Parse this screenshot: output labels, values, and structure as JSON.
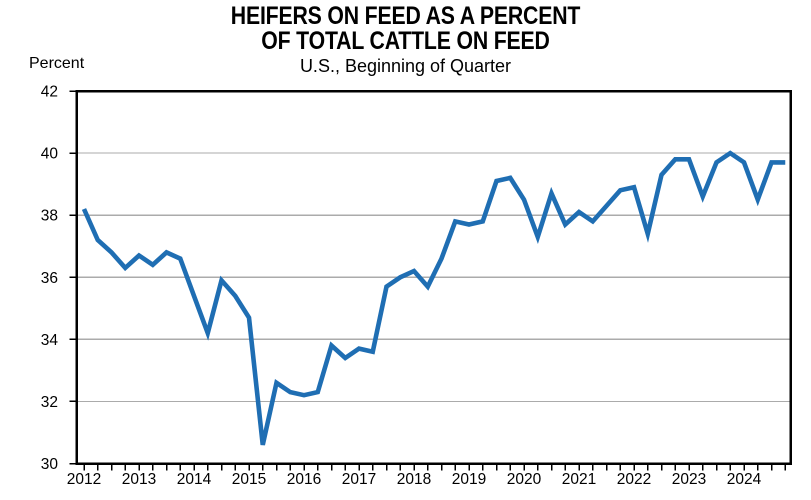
{
  "chart_data": {
    "type": "line",
    "title": "HEIFERS ON FEED AS A PERCENT",
    "title_line2": "OF TOTAL CATTLE ON FEED",
    "subtitle": "U.S., Beginning of Quarter",
    "ylabel": "Percent",
    "xlabel": "",
    "ylim": [
      30,
      42
    ],
    "yticks": [
      30,
      32,
      34,
      36,
      38,
      40,
      42
    ],
    "x_years": [
      2012,
      2013,
      2014,
      2015,
      2016,
      2017,
      2018,
      2019,
      2020,
      2021,
      2022,
      2023,
      2024
    ],
    "frequency": "quarterly",
    "start": "2012-Q1",
    "legend": "none",
    "grid": "horizontal",
    "series": [
      {
        "name": "Heifers on feed as percent of total cattle on feed",
        "values": [
          38.2,
          37.2,
          36.8,
          36.3,
          36.7,
          36.4,
          36.8,
          36.6,
          35.4,
          34.2,
          35.9,
          35.4,
          34.7,
          30.6,
          32.6,
          32.3,
          32.2,
          32.3,
          33.8,
          33.4,
          33.7,
          33.6,
          35.7,
          36.0,
          36.2,
          35.7,
          36.6,
          37.8,
          37.7,
          37.8,
          39.1,
          39.2,
          38.5,
          37.3,
          38.7,
          37.7,
          38.1,
          37.8,
          38.3,
          38.8,
          38.9,
          37.4,
          39.3,
          39.8,
          39.8,
          38.6,
          39.7,
          40.0,
          39.7,
          38.5,
          39.7,
          39.7
        ]
      }
    ],
    "colors": {
      "line": "#1F6EB3",
      "grid": "#ABABAB",
      "axis": "#000000",
      "text": "#000000",
      "background": "#FFFFFF"
    }
  }
}
